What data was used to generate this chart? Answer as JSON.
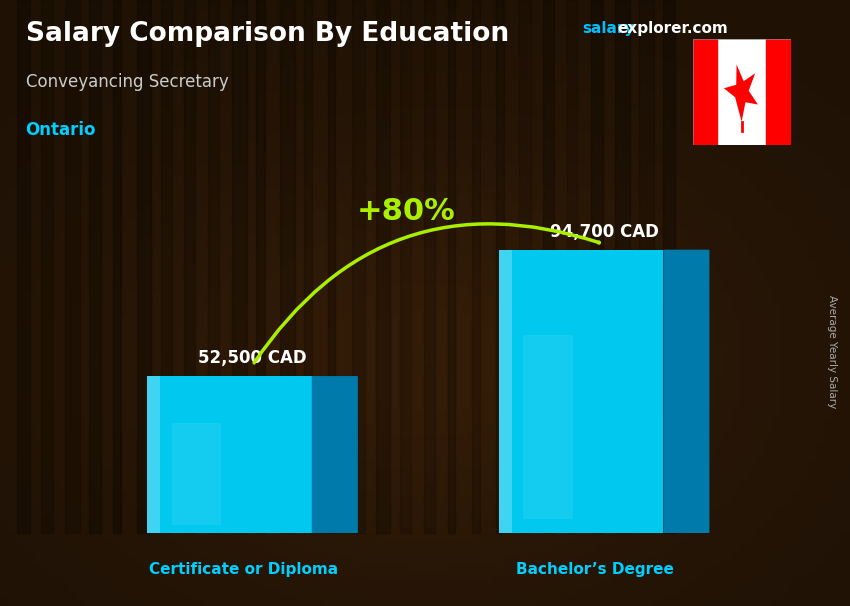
{
  "title": "Salary Comparison By Education",
  "subtitle": "Conveyancing Secretary",
  "location": "Ontario",
  "ylabel": "Average Yearly Salary",
  "categories": [
    "Certificate or Diploma",
    "Bachelor’s Degree"
  ],
  "values": [
    52500,
    94700
  ],
  "value_labels": [
    "52,500 CAD",
    "94,700 CAD"
  ],
  "pct_change": "+80%",
  "background_color": "#1a1008",
  "title_color": "#FFFFFF",
  "subtitle_color": "#CCCCCC",
  "location_color": "#00CFFF",
  "label_color": "#FFFFFF",
  "xticklabel_color": "#00CFFF",
  "pct_color": "#AAEE00",
  "arrow_color": "#AAEE00",
  "website_salary_color": "#00BFFF",
  "website_rest_color": "#FFFFFF",
  "ylabel_color": "#AAAAAA",
  "bar_front": "#00C8EE",
  "bar_top": "#55EEFF",
  "bar_side": "#007AAA",
  "ylim": [
    0,
    115000
  ],
  "figsize": [
    8.5,
    6.06
  ],
  "dpi": 100
}
